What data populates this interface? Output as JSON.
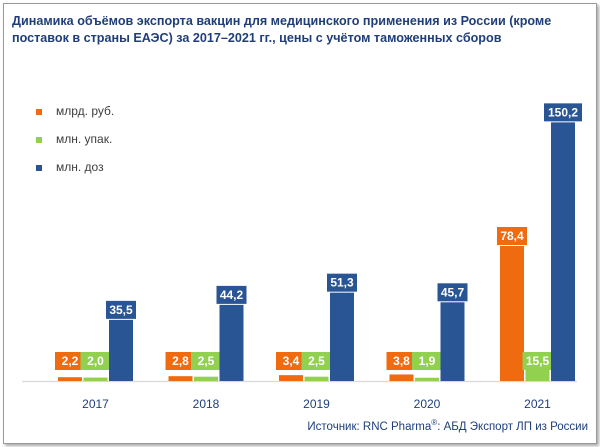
{
  "header": {
    "title_line1": "Динамика объёмов экспорта вакцин для медицинского применения из России (кроме",
    "title_line2": "поставок в страны ЕАЭС) за 2017–2021 гг., цены с учётом таможенных сборов"
  },
  "legend": {
    "items": [
      {
        "label": "млрд. руб.",
        "color": "#f06b0f"
      },
      {
        "label": "млн. упак.",
        "color": "#92d050"
      },
      {
        "label": "млн. доз",
        "color": "#2a5595"
      }
    ]
  },
  "footer": {
    "source_prefix": "Источник: RNC Pharma",
    "source_sup": "®",
    "source_suffix": ": АБД Экспорт ЛП из России"
  },
  "chart_data": {
    "type": "bar",
    "categories": [
      "2017",
      "2018",
      "2019",
      "2020",
      "2021"
    ],
    "series": [
      {
        "name": "млрд. руб.",
        "color": "#f06b0f",
        "values": [
          2.2,
          2.8,
          3.4,
          3.8,
          78.4
        ],
        "labels": [
          "2,2",
          "2,8",
          "3,4",
          "3,8",
          "78,4"
        ]
      },
      {
        "name": "млн. упак.",
        "color": "#92d050",
        "values": [
          2.0,
          2.5,
          2.5,
          1.9,
          15.5
        ],
        "labels": [
          "2,0",
          "2,5",
          "2,5",
          "1,9",
          "15,5"
        ]
      },
      {
        "name": "млн. доз",
        "color": "#2a5595",
        "values": [
          35.5,
          44.2,
          51.3,
          45.7,
          150.2
        ],
        "labels": [
          "35,5",
          "44,2",
          "51,3",
          "45,7",
          "150,2"
        ]
      }
    ],
    "axis_color": "#d9d9d9",
    "tick_color": "#1f3e79",
    "grid": false,
    "legend_position": "top-left"
  }
}
